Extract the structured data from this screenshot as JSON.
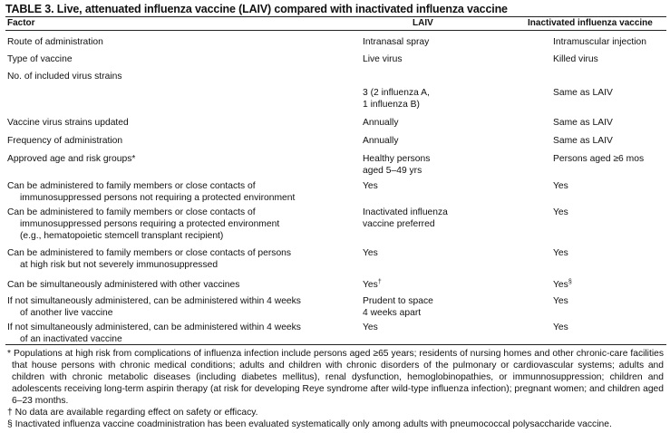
{
  "title": "TABLE 3. Live, attenuated influenza vaccine (LAIV) compared with inactivated influenza vaccine",
  "headers": {
    "factor": "Factor",
    "laiv": "LAIV",
    "inactivated": "Inactivated influenza vaccine"
  },
  "rows": [
    {
      "factor": [
        "Route of administration"
      ],
      "laiv": [
        "Intranasal spray"
      ],
      "inactivated": [
        "Intramuscular injection"
      ]
    },
    {
      "factor": [
        "Type of vaccine"
      ],
      "laiv": [
        "Live virus"
      ],
      "inactivated": [
        "Killed virus"
      ]
    },
    {
      "factor": [
        "No. of included virus strains"
      ],
      "laiv": [],
      "inactivated": []
    },
    {
      "factor": [],
      "laiv": [
        "3 (2 influenza A,",
        "1 influenza B)"
      ],
      "inactivated": [
        "Same as LAIV"
      ]
    },
    {
      "factor": [
        "Vaccine virus strains updated"
      ],
      "laiv": [
        "Annually"
      ],
      "inactivated": [
        "Same as LAIV"
      ]
    },
    {
      "factor": [
        "Frequency of administration"
      ],
      "laiv": [
        "Annually"
      ],
      "inactivated": [
        "Same as LAIV"
      ]
    },
    {
      "factor": [
        "Approved age and risk groups*"
      ],
      "laiv": [
        "Healthy persons",
        "aged 5–49 yrs"
      ],
      "inactivated": [
        "Persons aged ≥6 mos"
      ]
    },
    {
      "factor": [
        "Can be administered to family members or close contacts of",
        "immunosuppressed persons not requiring a protected environment"
      ],
      "laiv": [
        "Yes"
      ],
      "inactivated": [
        "Yes"
      ]
    },
    {
      "factor": [
        "Can be administered to family members or close contacts of",
        "immunosuppressed persons requiring a protected environment",
        "(e.g., hematopoietic stemcell transplant recipient)"
      ],
      "laiv": [
        "Inactivated influenza",
        "vaccine preferred"
      ],
      "inactivated": [
        "Yes"
      ]
    },
    {
      "factor": [
        "Can be administered to family members or close contacts of persons",
        "at high risk but not severely immunosuppressed"
      ],
      "laiv": [
        "Yes"
      ],
      "inactivated": [
        "Yes"
      ]
    },
    {
      "factor": [
        "Can be simultaneously administered with other vaccines"
      ],
      "laiv": [
        "Yes"
      ],
      "laiv_mark": "†",
      "inactivated": [
        "Yes"
      ],
      "inactivated_mark": "§"
    },
    {
      "factor": [
        "If not simultaneously administered, can be administered within 4 weeks",
        "of another live vaccine"
      ],
      "laiv": [
        "Prudent to space",
        "4 weeks apart"
      ],
      "inactivated": [
        "Yes"
      ]
    },
    {
      "factor": [
        "If not simultaneously administered, can be administered within 4 weeks",
        "of an inactivated vaccine"
      ],
      "laiv": [
        "Yes"
      ],
      "inactivated": [
        "Yes"
      ]
    }
  ],
  "footnotes": [
    "* Populations at high risk from complications of influenza infection include persons aged ≥65 years; residents of nursing homes and other chronic-care facilities that house persons with chronic medical conditions; adults and children with chronic disorders of the pulmonary or cardiovascular systems; adults and children with chronic metabolic diseases (including diabetes mellitus), renal dysfunction, hemoglobinopathies, or immunnosuppression; children and adolescents receiving long-term aspirin therapy (at risk for developing Reye syndrome after wild-type influenza infection); pregnant women; and children aged 6–23 months.",
    "† No data are available regarding effect on safety or efficacy.",
    "§ Inactivated influenza vaccine coadministration has been evaluated systematically only among adults with pneumococcal polysaccharide vaccine."
  ]
}
